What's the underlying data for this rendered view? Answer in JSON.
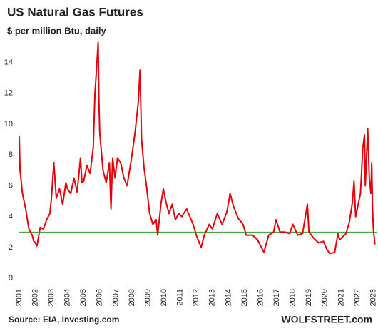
{
  "chart_data": {
    "type": "line",
    "title": "US Natural Gas Futures",
    "subtitle": "$ per million Btu, daily",
    "source": "Source: EIA, Investing.com",
    "brand": "WOLFSTREET.com",
    "x": [
      2001.0,
      2001.05,
      2001.2,
      2001.4,
      2001.6,
      2001.8,
      2001.9,
      2002.0,
      2002.1,
      2002.3,
      2002.5,
      2002.7,
      2002.9,
      2003.0,
      2003.15,
      2003.3,
      2003.5,
      2003.7,
      2003.9,
      2004.0,
      2004.2,
      2004.4,
      2004.6,
      2004.8,
      2004.9,
      2005.0,
      2005.2,
      2005.4,
      2005.6,
      2005.7,
      2005.8,
      2005.9,
      2005.95,
      2006.0,
      2006.2,
      2006.4,
      2006.6,
      2006.7,
      2006.8,
      2006.95,
      2007.1,
      2007.3,
      2007.5,
      2007.7,
      2007.9,
      2008.0,
      2008.2,
      2008.4,
      2008.5,
      2008.6,
      2008.75,
      2008.9,
      2009.1,
      2009.3,
      2009.5,
      2009.6,
      2009.8,
      2009.95,
      2010.1,
      2010.3,
      2010.5,
      2010.7,
      2010.9,
      2011.1,
      2011.4,
      2011.6,
      2011.8,
      2012.0,
      2012.3,
      2012.5,
      2012.8,
      2013.0,
      2013.3,
      2013.6,
      2013.9,
      2014.1,
      2014.3,
      2014.6,
      2014.9,
      2015.1,
      2015.5,
      2015.8,
      2015.95,
      2016.2,
      2016.5,
      2016.8,
      2016.95,
      2017.2,
      2017.5,
      2017.8,
      2018.0,
      2018.3,
      2018.6,
      2018.9,
      2019.0,
      2019.3,
      2019.6,
      2019.9,
      2020.1,
      2020.3,
      2020.6,
      2020.8,
      2020.9,
      2021.1,
      2021.3,
      2021.5,
      2021.7,
      2021.8,
      2021.9,
      2022.0,
      2022.2,
      2022.35,
      2022.45,
      2022.5,
      2022.6,
      2022.65,
      2022.75,
      2022.85,
      2022.9,
      2022.95,
      2023.0,
      2023.1
    ],
    "series": [
      {
        "name": "US Natural Gas Futures",
        "color": "#e8000b",
        "values": [
          9.2,
          7,
          5.5,
          4.5,
          3.2,
          2.8,
          2.4,
          2.3,
          2.1,
          3.3,
          3.2,
          3.8,
          4.2,
          5.2,
          7.5,
          5.2,
          5.8,
          4.8,
          6.2,
          5.8,
          5.5,
          6.5,
          5.6,
          7.8,
          6.2,
          6.3,
          7.3,
          6.8,
          8.5,
          12,
          13.5,
          15.3,
          11.5,
          9.5,
          7,
          6.2,
          7.5,
          4.5,
          7.8,
          6.5,
          7.8,
          7.5,
          6.5,
          6.0,
          7.3,
          8,
          9.5,
          11.5,
          13.5,
          9,
          7.2,
          6.0,
          4.2,
          3.5,
          3.8,
          2.8,
          4.8,
          5.8,
          5.0,
          4.2,
          4.8,
          3.8,
          4.2,
          4.0,
          4.5,
          4.0,
          3.5,
          2.8,
          2.0,
          2.8,
          3.5,
          3.2,
          4.2,
          3.5,
          4.3,
          5.5,
          4.7,
          3.9,
          3.5,
          2.8,
          2.8,
          2.5,
          2.2,
          1.7,
          2.8,
          3.0,
          3.8,
          3.0,
          3.0,
          2.9,
          3.5,
          2.8,
          2.9,
          4.8,
          3.0,
          2.6,
          2.3,
          2.4,
          1.9,
          1.6,
          1.7,
          2.9,
          2.5,
          2.7,
          2.9,
          3.6,
          4.9,
          6.3,
          4.0,
          4.5,
          5.5,
          8.5,
          9.3,
          6.0,
          8.5,
          9.7,
          6.5,
          5.5,
          7.5,
          4.5,
          3.2,
          2.2
        ]
      }
    ],
    "reference_line": {
      "value": 3,
      "color": "#2e9a2e"
    },
    "xlim": [
      2001,
      2023.2
    ],
    "xticks": [
      2001,
      2002,
      2003,
      2004,
      2005,
      2006,
      2007,
      2008,
      2009,
      2010,
      2011,
      2012,
      2013,
      2014,
      2015,
      2016,
      2017,
      2018,
      2019,
      2020,
      2021,
      2022,
      2023
    ],
    "ylim": [
      -0.5,
      15.5
    ],
    "yticks": [
      0,
      2,
      4,
      6,
      8,
      10,
      12,
      14
    ],
    "grid": false
  }
}
